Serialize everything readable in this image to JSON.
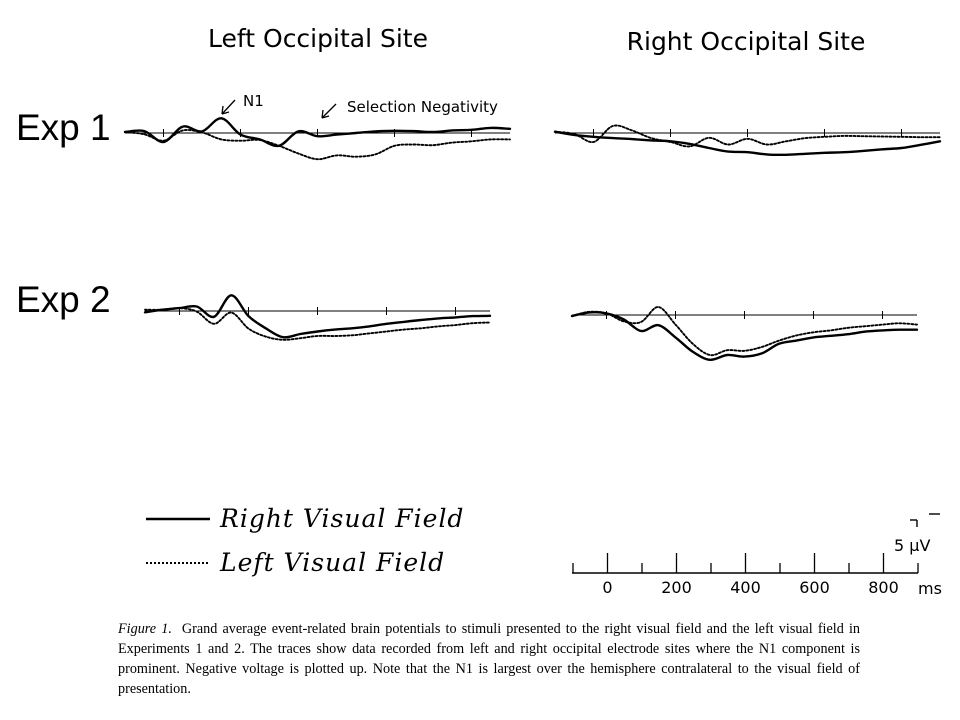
{
  "chart_data": {
    "type": "line",
    "column_titles": [
      "Left Occipital Site",
      "Right Occipital Site"
    ],
    "row_labels": [
      "Exp 1",
      "Exp 2"
    ],
    "annotations": [
      "N1",
      "Selection Negativity"
    ],
    "polarity": "negative voltage plotted up",
    "x_axis": {
      "ticks": [
        "0",
        "200",
        "400",
        "600",
        "800"
      ],
      "unit": "ms",
      "xlim": [
        -100,
        900
      ]
    },
    "scale_bar": {
      "label": "5 μV",
      "value": 5
    },
    "legend": [
      {
        "label": "Right Visual Field",
        "style": "solid"
      },
      {
        "label": "Left Visual Field",
        "style": "dotted"
      }
    ],
    "x": [
      -100,
      -50,
      0,
      50,
      100,
      150,
      200,
      250,
      300,
      350,
      400,
      450,
      500,
      550,
      600,
      650,
      700,
      750,
      800,
      850,
      900
    ],
    "panels": [
      {
        "row": "Exp 1",
        "column": "Left Occipital Site",
        "series": [
          {
            "name": "Right Visual Field",
            "values": [
              0.3,
              0.6,
              -2.8,
              2.0,
              0.5,
              4.6,
              -0.5,
              -2.0,
              -4.0,
              0.5,
              -1.0,
              -0.5,
              0,
              0.5,
              0.7,
              0.6,
              0.3,
              0.8,
              1.0,
              1.6,
              1.3
            ]
          },
          {
            "name": "Left Visual Field",
            "values": [
              0.3,
              -0.4,
              -2.4,
              0.8,
              0.2,
              -2.0,
              -2.4,
              -2.2,
              -4.0,
              -6.4,
              -8.2,
              -7.0,
              -7.4,
              -6.7,
              -4.0,
              -3.6,
              -3.8,
              -3.0,
              -2.6,
              -2.0,
              -2.0
            ]
          }
        ]
      },
      {
        "row": "Exp 1",
        "column": "Right Occipital Site",
        "series": [
          {
            "name": "Right Visual Field",
            "values": [
              0.4,
              -0.6,
              -1.2,
              -1.6,
              -1.9,
              -2.3,
              -2.6,
              -3.4,
              -4.7,
              -5.8,
              -6.0,
              -6.7,
              -6.8,
              -6.5,
              -6.2,
              -6.0,
              -5.6,
              -5.1,
              -4.7,
              -3.7,
              -2.6
            ]
          },
          {
            "name": "Left Visual Field",
            "values": [
              0.4,
              -0.3,
              -2.8,
              2.2,
              0.8,
              -1.6,
              -2.8,
              -4.2,
              -1.5,
              -3.6,
              -1.8,
              -3.6,
              -2.6,
              -1.6,
              -1.2,
              -0.9,
              -1.0,
              -1.1,
              -1.2,
              -1.3,
              -1.3
            ]
          }
        ]
      },
      {
        "row": "Exp 2",
        "column": "Left Occipital Site",
        "series": [
          {
            "name": "Right Visual Field",
            "values": [
              -0.4,
              0.4,
              0.9,
              1.4,
              -1.8,
              4.9,
              -1.6,
              -5.4,
              -8.2,
              -7.2,
              -6.4,
              -5.8,
              -5.4,
              -4.8,
              -4.0,
              -3.4,
              -2.8,
              -2.3,
              -2.0,
              -1.6,
              -1.5
            ]
          },
          {
            "name": "Left Visual Field",
            "values": [
              0.4,
              0.4,
              0.9,
              -0.2,
              -4.0,
              -0.5,
              -5.5,
              -8.0,
              -9.0,
              -8.5,
              -7.8,
              -7.8,
              -7.6,
              -7.0,
              -6.4,
              -5.8,
              -5.4,
              -4.8,
              -4.4,
              -3.8,
              -3.6
            ]
          }
        ]
      },
      {
        "row": "Exp 2",
        "column": "Right Occipital Site",
        "series": [
          {
            "name": "Right Visual Field",
            "values": [
              -0.3,
              0.8,
              0.5,
              -1.4,
              -5.0,
              -3.2,
              -7.0,
              -11.5,
              -14.0,
              -12.5,
              -13.0,
              -12.0,
              -9.0,
              -8.0,
              -7.0,
              -6.5,
              -6.0,
              -5.2,
              -4.8,
              -4.6,
              -4.6
            ]
          },
          {
            "name": "Left Visual Field",
            "values": [
              -0.3,
              1.0,
              0.5,
              -2.0,
              -2.2,
              2.5,
              -3.0,
              -9.0,
              -12.5,
              -11.0,
              -11.2,
              -10.0,
              -8.0,
              -6.4,
              -5.4,
              -4.8,
              -4.0,
              -3.5,
              -3.0,
              -2.6,
              -3.0
            ]
          }
        ]
      }
    ]
  },
  "caption": {
    "label": "Figure 1.",
    "text": "Grand average event-related brain potentials to stimuli presented to the right visual field and the left visual field in Experiments 1 and 2. The traces show data recorded from left and right occipital electrode sites where the N1 component is prominent. Negative voltage is plotted up. Note that the N1 is largest over the hemisphere contralateral to the visual field of presentation."
  }
}
